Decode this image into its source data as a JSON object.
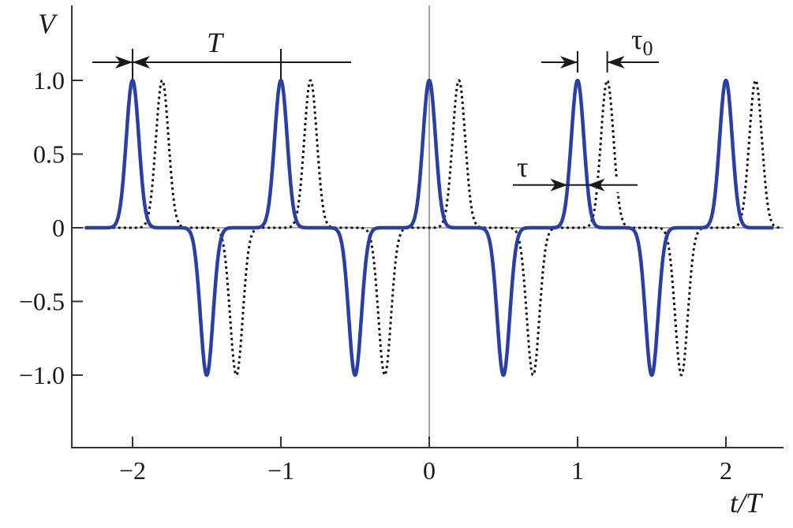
{
  "chart_data": {
    "type": "line",
    "title": "",
    "xlabel": "t/T",
    "ylabel": "V",
    "xlim": [
      -2.4,
      2.4
    ],
    "ylim": [
      -1.5,
      1.55
    ],
    "xticks": [
      {
        "value": -2,
        "label": "−2"
      },
      {
        "value": -1,
        "label": "−1"
      },
      {
        "value": 0,
        "label": "0"
      },
      {
        "value": 1,
        "label": "1"
      },
      {
        "value": 2,
        "label": "2"
      }
    ],
    "yticks": [
      {
        "value": 1.0,
        "label": "1.0"
      },
      {
        "value": 0.5,
        "label": "0.5"
      },
      {
        "value": 0,
        "label": "0"
      },
      {
        "value": -0.5,
        "label": "−0.5"
      },
      {
        "value": -1.0,
        "label": "−1.0"
      }
    ],
    "grid": false,
    "series": [
      {
        "style": "solid",
        "color": "#2b3f9e",
        "pulse_shape": "gaussian",
        "pulse_width": 0.06,
        "t_range": [
          -2.32,
          2.32
        ],
        "pulses": [
          {
            "t": -2,
            "v": 1
          },
          {
            "t": -1.5,
            "v": -1
          },
          {
            "t": -1,
            "v": 1
          },
          {
            "t": -0.5,
            "v": -1
          },
          {
            "t": 0,
            "v": 1
          },
          {
            "t": 0.5,
            "v": -1
          },
          {
            "t": 1,
            "v": 1
          },
          {
            "t": 1.5,
            "v": -1
          },
          {
            "t": 2,
            "v": 1
          }
        ]
      },
      {
        "style": "dotted",
        "color": "#111111",
        "pulse_shape": "gaussian",
        "pulse_width": 0.06,
        "t_range": [
          -2.32,
          2.38
        ],
        "pulses": [
          {
            "t": -1.8,
            "v": 1
          },
          {
            "t": -1.3,
            "v": -1
          },
          {
            "t": -0.8,
            "v": 1
          },
          {
            "t": -0.3,
            "v": -1
          },
          {
            "t": 0.2,
            "v": 1
          },
          {
            "t": 0.7,
            "v": -1
          },
          {
            "t": 1.2,
            "v": 1
          },
          {
            "t": 1.7,
            "v": -1
          },
          {
            "t": 2.2,
            "v": 1
          }
        ]
      }
    ],
    "annotations": {
      "period": {
        "label": "T",
        "from": -2,
        "to": -1
      },
      "delay": {
        "label": "τ",
        "sub": "0",
        "from": 1,
        "to": 1.2
      },
      "width": {
        "label": "τ",
        "at_t": 1,
        "level": 0.29
      }
    }
  }
}
